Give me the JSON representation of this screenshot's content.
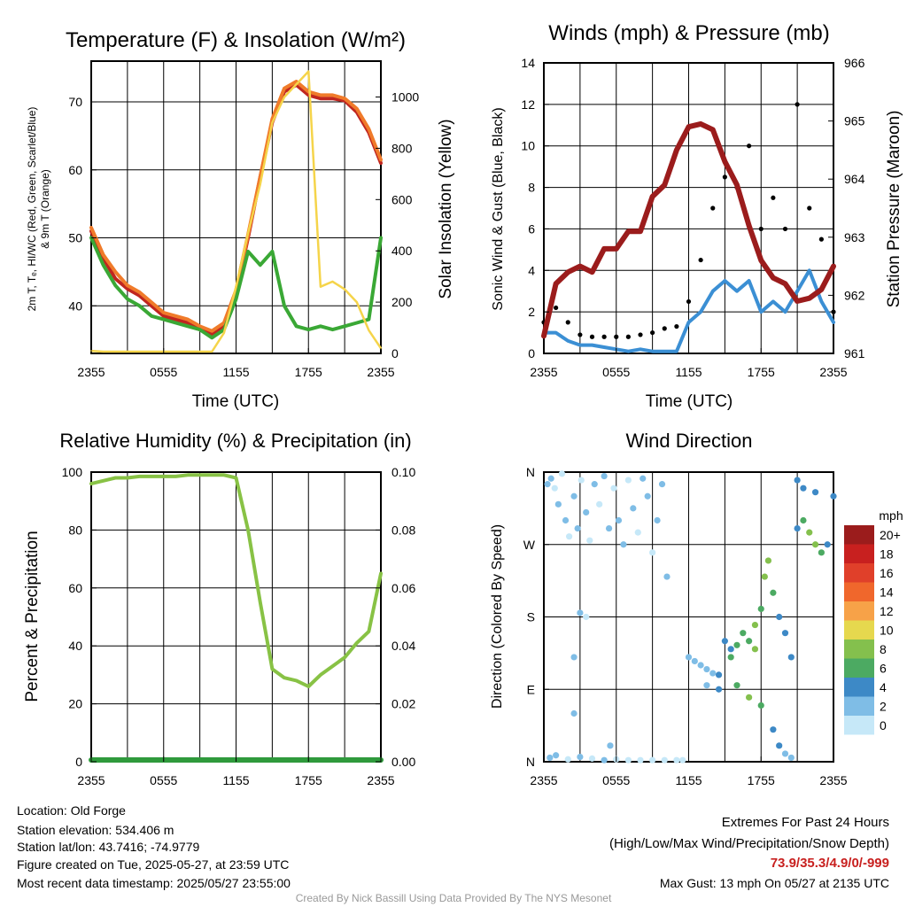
{
  "panels": {
    "temperature": {
      "title": "Temperature (F) & Insolation (W/m²)",
      "xlabel": "Time (UTC)",
      "ylabel_left_1": "2m T, Tₑ, HI/WC (Red, Green, Scarlet/Blue)",
      "ylabel_left_2": "& 9m T (Orange)",
      "ylabel_right": "Solar Insolation (Yellow)"
    },
    "winds": {
      "title": "Winds (mph) & Pressure (mb)",
      "xlabel": "Time (UTC)",
      "ylabel_left": "Sonic Wind & Gust (Blue, Black)",
      "ylabel_right": "Station Pressure (Maroon)"
    },
    "humidity": {
      "title": "Relative Humidity (%) & Precipitation (in)",
      "ylabel_left": "Percent & Precipitation"
    },
    "direction": {
      "title": "Wind Direction",
      "ylabel_left": "Direction (Colored By Speed)"
    }
  },
  "colorbar": {
    "title": "mph",
    "labels": [
      "20+",
      "18",
      "16",
      "14",
      "12",
      "10",
      "8",
      "6",
      "4",
      "2",
      "0"
    ],
    "colors": [
      "#9b1c1c",
      "#c8201f",
      "#e0402a",
      "#f0672c",
      "#f7a248",
      "#e6d84e",
      "#84c04d",
      "#4caa62",
      "#3d89c6",
      "#7fbde6",
      "#c6e8f8"
    ]
  },
  "footer": {
    "location": "Location: Old Forge",
    "elevation": "Station elevation: 534.406 m",
    "latlon": "Station lat/lon: 43.7416; -74.9779",
    "created": "Figure created on Tue, 2025-05-27, at 23:59 UTC",
    "recent": "Most recent data timestamp: 2025/05/27 23:55:00",
    "extremes_title": "Extremes For Past 24 Hours",
    "extremes_sub": "(High/Low/Max Wind/Precipitation/Snow Depth)",
    "extremes_values": "73.9/35.3/4.9/0/-999",
    "max_gust": "Max Gust: 13 mph On 05/27 at 2135 UTC",
    "credit": "Created By Nick Bassill Using Data Provided By The NYS Mesonet"
  },
  "chart_data": [
    {
      "type": "line",
      "title": "Temperature (F) & Insolation (W/m²)",
      "xlabel": "Time (UTC)",
      "ylabel": "2m T, Tₑ, HI/WC (Red, Green, Scarlet/Blue) & 9m T (Orange)",
      "y2label": "Solar Insolation (Yellow)",
      "x_ticks": [
        "2355",
        "0555",
        "1155",
        "1755",
        "2355"
      ],
      "x_hours": [
        0,
        1,
        2,
        3,
        4,
        5,
        6,
        7,
        8,
        9,
        10,
        11,
        12,
        13,
        14,
        15,
        16,
        17,
        18,
        19,
        20,
        21,
        22,
        23,
        24
      ],
      "xlim": [
        0,
        24
      ],
      "ylim": [
        33,
        76
      ],
      "y_ticks": [
        40,
        50,
        60,
        70
      ],
      "y2lim": [
        0,
        1140
      ],
      "y2_ticks": [
        0,
        200,
        400,
        600,
        800,
        1000
      ],
      "grid": true,
      "series": [
        {
          "name": "2m T",
          "color": "#c0261f",
          "axis": "left",
          "values": [
            51,
            47,
            44,
            42.5,
            41.5,
            40,
            38.5,
            38,
            37.5,
            36.5,
            35.8,
            37,
            42,
            50,
            59,
            67,
            71.5,
            72.5,
            71,
            70.5,
            70.5,
            70.2,
            68.5,
            65.5,
            61
          ]
        },
        {
          "name": "9m T",
          "color": "#f07b2a",
          "axis": "left",
          "values": [
            51.5,
            47.5,
            45,
            43,
            42,
            40.5,
            39,
            38.5,
            38,
            37,
            36.3,
            37.5,
            42.3,
            50.5,
            59,
            67.5,
            72,
            73,
            71.5,
            71,
            71,
            70.5,
            69,
            66,
            61.5
          ]
        },
        {
          "name": "Td",
          "color": "#3aa835",
          "axis": "left",
          "values": [
            50,
            46,
            43,
            41,
            40,
            38.5,
            38,
            37.5,
            37,
            36.5,
            35.3,
            36.5,
            41,
            48,
            46,
            48,
            40,
            37,
            36.5,
            37,
            36.5,
            37,
            37.5,
            38,
            50
          ]
        },
        {
          "name": "Solar Insolation",
          "color": "#f5d44a",
          "axis": "right",
          "values": [
            10,
            5,
            5,
            5,
            5,
            5,
            5,
            5,
            5,
            5,
            5,
            80,
            260,
            470,
            660,
            900,
            1000,
            1050,
            1100,
            260,
            280,
            250,
            200,
            90,
            20
          ]
        }
      ]
    },
    {
      "type": "line",
      "title": "Winds (mph) & Pressure (mb)",
      "xlabel": "Time (UTC)",
      "ylabel": "Sonic Wind & Gust (Blue, Black)",
      "y2label": "Station Pressure (Maroon)",
      "x_ticks": [
        "2355",
        "0555",
        "1155",
        "1755",
        "2355"
      ],
      "x_hours": [
        0,
        1,
        2,
        3,
        4,
        5,
        6,
        7,
        8,
        9,
        10,
        11,
        12,
        13,
        14,
        15,
        16,
        17,
        18,
        19,
        20,
        21,
        22,
        23,
        24
      ],
      "xlim": [
        0,
        24
      ],
      "ylim": [
        0,
        14
      ],
      "y_ticks": [
        0,
        2,
        4,
        6,
        8,
        10,
        12,
        14
      ],
      "y2lim": [
        961,
        966
      ],
      "y2_ticks": [
        961,
        962,
        963,
        964,
        965,
        966
      ],
      "grid": true,
      "series": [
        {
          "name": "Sonic Wind",
          "color": "#3b8fd4",
          "axis": "left",
          "values": [
            1,
            1,
            0.6,
            0.4,
            0.4,
            0.3,
            0.2,
            0.1,
            0.2,
            0.1,
            0.1,
            0.1,
            1.5,
            2,
            3,
            3.5,
            3,
            3.5,
            2,
            2.5,
            2,
            3,
            4,
            2.5,
            1.5
          ]
        },
        {
          "name": "Gust",
          "color": "#000000",
          "axis": "left",
          "values": [
            1.5,
            2.2,
            1.5,
            0.9,
            0.8,
            0.8,
            0.8,
            0.8,
            0.9,
            1,
            1.2,
            1.3,
            2.5,
            4.5,
            7,
            8.5,
            8,
            10,
            6,
            7.5,
            6,
            12,
            7,
            5.5,
            2
          ]
        },
        {
          "name": "Station Pressure",
          "color": "#9b1c1c",
          "axis": "right",
          "values": [
            961.3,
            962.2,
            962.4,
            962.5,
            962.4,
            962.8,
            962.8,
            963.1,
            963.1,
            963.7,
            963.9,
            964.5,
            964.9,
            964.95,
            964.85,
            964.3,
            963.9,
            963.2,
            962.6,
            962.3,
            962.2,
            961.9,
            961.95,
            962.1,
            962.5
          ]
        }
      ]
    },
    {
      "type": "line",
      "title": "Relative Humidity (%) & Precipitation (in)",
      "ylabel": "Percent & Precipitation",
      "x_ticks": [
        "2355",
        "0555",
        "1155",
        "1755",
        "2355"
      ],
      "x_hours": [
        0,
        1,
        2,
        3,
        4,
        5,
        6,
        7,
        8,
        9,
        10,
        11,
        12,
        13,
        14,
        15,
        16,
        17,
        18,
        19,
        20,
        21,
        22,
        23,
        24
      ],
      "xlim": [
        0,
        24
      ],
      "ylim": [
        0,
        100
      ],
      "y_ticks": [
        0,
        20,
        40,
        60,
        80,
        100
      ],
      "y2lim": [
        0,
        0.1
      ],
      "y2_ticks": [
        "0.00",
        "0.02",
        "0.04",
        "0.06",
        "0.08",
        "0.10"
      ],
      "grid": true,
      "series": [
        {
          "name": "Relative Humidity",
          "color": "#88c245",
          "axis": "left",
          "values": [
            96,
            97,
            98,
            98,
            98.5,
            98.5,
            98.5,
            98.5,
            99,
            99,
            99,
            99,
            98,
            80,
            55,
            32,
            29,
            28,
            26,
            30,
            33,
            36,
            41,
            45,
            65
          ]
        },
        {
          "name": "Precipitation",
          "color": "#2f9a3c",
          "axis": "right",
          "values": [
            0,
            0,
            0,
            0,
            0,
            0,
            0,
            0,
            0,
            0,
            0,
            0,
            0,
            0,
            0,
            0,
            0,
            0,
            0,
            0,
            0,
            0,
            0,
            0,
            0
          ]
        }
      ]
    },
    {
      "type": "scatter",
      "title": "Wind Direction",
      "ylabel": "Direction (Colored By Speed)",
      "x_ticks": [
        "2355",
        "0555",
        "1155",
        "1755",
        "2355"
      ],
      "xlim": [
        0,
        24
      ],
      "ylim": [
        0,
        360
      ],
      "y_ticks": [
        "N",
        "E",
        "S",
        "W",
        "N"
      ],
      "y_tick_values": [
        0,
        90,
        180,
        270,
        360
      ],
      "grid": true,
      "points": [
        [
          0.3,
          345,
          1
        ],
        [
          0.6,
          352,
          1
        ],
        [
          0.9,
          340,
          0
        ],
        [
          1.2,
          320,
          1
        ],
        [
          1.5,
          358,
          0
        ],
        [
          1.8,
          300,
          1
        ],
        [
          2.1,
          280,
          0
        ],
        [
          2.5,
          330,
          1
        ],
        [
          2.8,
          290,
          1
        ],
        [
          3.1,
          350,
          0
        ],
        [
          3.5,
          310,
          1
        ],
        [
          3.8,
          275,
          0
        ],
        [
          4.2,
          345,
          1
        ],
        [
          4.6,
          320,
          0
        ],
        [
          5.0,
          355,
          1
        ],
        [
          5.4,
          290,
          1
        ],
        [
          5.8,
          340,
          0
        ],
        [
          6.2,
          300,
          1
        ],
        [
          6.6,
          270,
          1
        ],
        [
          7.0,
          350,
          0
        ],
        [
          7.4,
          315,
          1
        ],
        [
          7.8,
          285,
          0
        ],
        [
          8.2,
          352,
          1
        ],
        [
          8.6,
          330,
          1
        ],
        [
          9.0,
          260,
          0
        ],
        [
          9.4,
          300,
          1
        ],
        [
          9.8,
          345,
          1
        ],
        [
          10.2,
          230,
          1
        ],
        [
          0.5,
          5,
          1
        ],
        [
          1.0,
          8,
          1
        ],
        [
          2.0,
          3,
          0
        ],
        [
          3.0,
          6,
          1
        ],
        [
          4.0,
          4,
          0
        ],
        [
          5.0,
          2,
          1
        ],
        [
          6.0,
          3,
          0
        ],
        [
          7.0,
          2,
          0
        ],
        [
          8.0,
          2,
          0
        ],
        [
          9.0,
          2,
          0
        ],
        [
          10.0,
          2,
          0
        ],
        [
          11.0,
          2,
          0
        ],
        [
          11.5,
          2,
          0
        ],
        [
          3.0,
          185,
          1
        ],
        [
          3.5,
          180,
          0
        ],
        [
          2.5,
          130,
          1
        ],
        [
          5.5,
          20,
          1
        ],
        [
          2.5,
          60,
          1
        ],
        [
          12.0,
          130,
          1
        ],
        [
          12.5,
          125,
          1
        ],
        [
          13.0,
          120,
          1
        ],
        [
          13.5,
          115,
          1
        ],
        [
          14.0,
          110,
          1
        ],
        [
          14.5,
          108,
          2
        ],
        [
          15.0,
          150,
          2
        ],
        [
          15.5,
          140,
          2
        ],
        [
          16.0,
          145,
          3
        ],
        [
          16.5,
          160,
          3
        ],
        [
          17.0,
          150,
          3
        ],
        [
          17.5,
          170,
          4
        ],
        [
          18.0,
          190,
          3
        ],
        [
          18.3,
          230,
          4
        ],
        [
          18.6,
          250,
          4
        ],
        [
          19.0,
          210,
          3
        ],
        [
          19.5,
          180,
          2
        ],
        [
          20.0,
          160,
          2
        ],
        [
          20.5,
          130,
          2
        ],
        [
          21.0,
          290,
          2
        ],
        [
          21.5,
          300,
          3
        ],
        [
          22.0,
          285,
          4
        ],
        [
          22.5,
          270,
          4
        ],
        [
          23.0,
          260,
          3
        ],
        [
          23.5,
          270,
          2
        ],
        [
          24.0,
          330,
          2
        ],
        [
          16.0,
          95,
          3
        ],
        [
          17.0,
          80,
          4
        ],
        [
          18.0,
          70,
          3
        ],
        [
          19.0,
          40,
          2
        ],
        [
          19.5,
          20,
          2
        ],
        [
          20.0,
          10,
          1
        ],
        [
          20.5,
          5,
          1
        ],
        [
          21.0,
          350,
          2
        ],
        [
          21.5,
          340,
          2
        ],
        [
          22.5,
          335,
          2
        ],
        [
          14.5,
          90,
          2
        ],
        [
          13.5,
          95,
          1
        ],
        [
          15.5,
          130,
          3
        ],
        [
          17.5,
          140,
          4
        ]
      ]
    }
  ]
}
